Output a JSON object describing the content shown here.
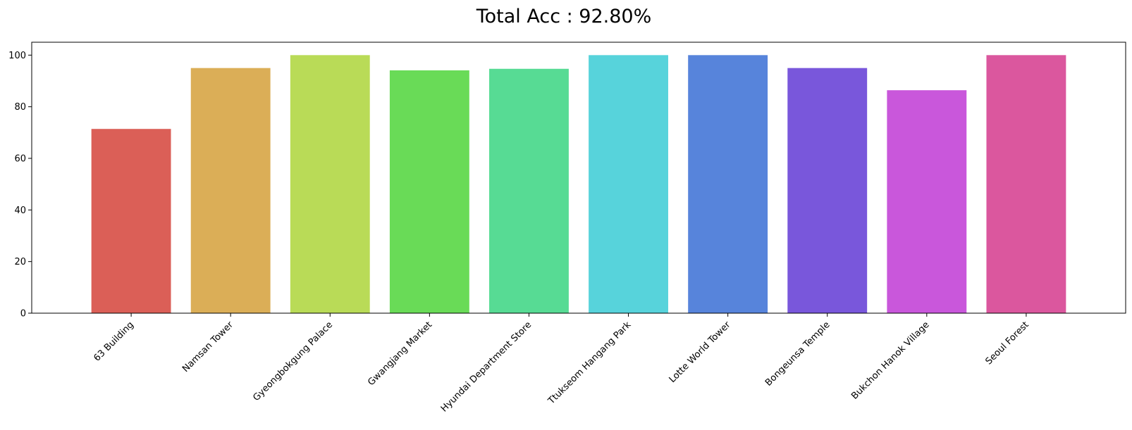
{
  "chart_data": {
    "type": "bar",
    "title": "Total Acc : 92.80%",
    "xlabel": "",
    "ylabel": "",
    "categories": [
      "63 Building",
      "Namsan Tower",
      "Gyeongbokgung Palace",
      "Gwangjang Market",
      "Hyundai Department Store",
      "Ttukseom Hangang Park",
      "Lotte World Tower",
      "Bongeunsa Temple",
      "Bukchon Hanok Village",
      "Seoul Forest"
    ],
    "values": [
      71.4,
      95.0,
      100.0,
      94.1,
      94.7,
      100.0,
      100.0,
      95.0,
      86.4,
      100.0
    ],
    "colors": [
      "#db5f57",
      "#dbae57",
      "#b9db57",
      "#69db57",
      "#57db94",
      "#57d3db",
      "#5784db",
      "#7957db",
      "#c957db",
      "#db579e"
    ],
    "ylim": [
      0,
      105
    ],
    "yticks": [
      "0",
      "20",
      "40",
      "60",
      "80",
      "100"
    ],
    "grid": false,
    "legend": "none"
  }
}
